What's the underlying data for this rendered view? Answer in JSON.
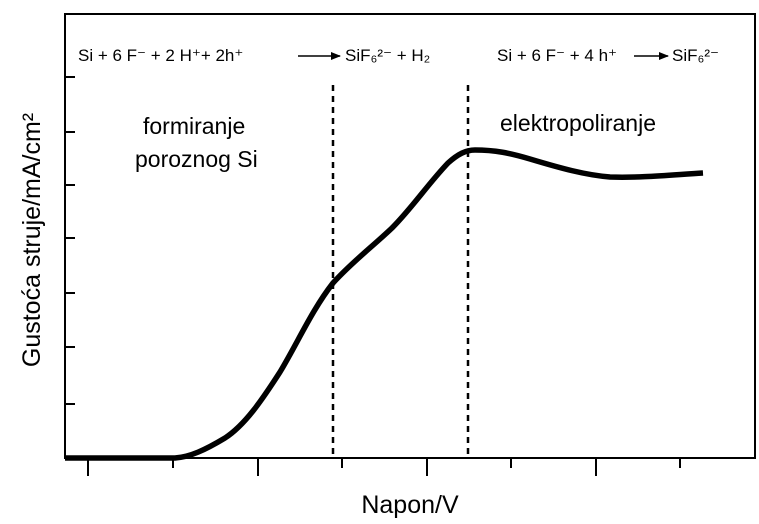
{
  "axes": {
    "x_label": "Napon/V",
    "y_label": "Gustoća struje/mA/cm²"
  },
  "reactions": [
    {
      "reactants": "Si + 6 F⁻ + 2 H⁺+ 2h⁺",
      "products": "SiF₆²⁻ + H₂"
    },
    {
      "reactants": "Si + 6 F⁻ + 4 h⁺",
      "products": "SiF₆²⁻"
    }
  ],
  "regions": [
    {
      "lines": [
        "formiranje",
        "poroznog Si"
      ]
    },
    {
      "lines": [
        "elektropoliranje"
      ]
    }
  ]
}
